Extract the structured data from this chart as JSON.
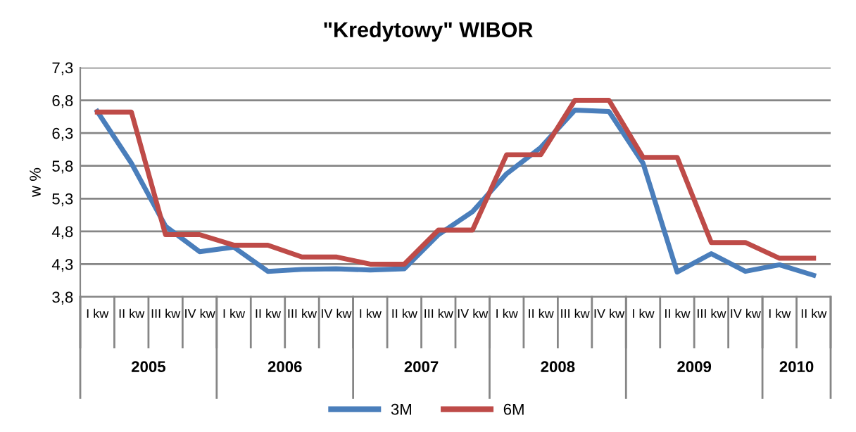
{
  "chart_data": {
    "type": "line",
    "title": "\"Kredytowy\" WIBOR",
    "ylabel": "w %",
    "categories": [
      "I kw",
      "II kw",
      "III kw",
      "IV kw",
      "I kw",
      "II kw",
      "III kw",
      "IV kw",
      "I kw",
      "II kw",
      "III kw",
      "IV kw",
      "I kw",
      "II kw",
      "III kw",
      "IV kw",
      "I kw",
      "II kw",
      "III kw",
      "IV kw",
      "I kw",
      "II kw"
    ],
    "annotations": [
      "2005",
      "2006",
      "2007",
      "2008",
      "2009",
      "2010"
    ],
    "series": [
      {
        "name": "3M",
        "color": "#4a7ebb",
        "values": [
          6.63,
          5.84,
          4.88,
          4.49,
          4.56,
          4.19,
          4.22,
          4.23,
          4.21,
          4.23,
          4.75,
          5.1,
          5.68,
          6.08,
          6.65,
          6.63,
          5.84,
          4.18,
          4.46,
          4.19,
          4.29,
          4.13
        ]
      },
      {
        "name": "6M",
        "color": "#be4b48",
        "values": [
          6.62,
          6.62,
          4.75,
          4.75,
          4.59,
          4.59,
          4.41,
          4.41,
          4.3,
          4.3,
          4.82,
          4.82,
          5.97,
          5.97,
          6.8,
          6.8,
          5.93,
          5.93,
          4.63,
          4.63,
          4.39,
          4.39
        ]
      }
    ],
    "ylim": [
      3.8,
      7.3
    ],
    "yticks": [
      {
        "value": 3.8,
        "label": "3,8"
      },
      {
        "value": 4.3,
        "label": "4,3"
      },
      {
        "value": 4.8,
        "label": "4,8"
      },
      {
        "value": 5.3,
        "label": "5,3"
      },
      {
        "value": 5.8,
        "label": "5,8"
      },
      {
        "value": 6.3,
        "label": "6,3"
      },
      {
        "value": 6.8,
        "label": "6,8"
      },
      {
        "value": 7.3,
        "label": "7,3"
      }
    ],
    "grid": "y",
    "legend": "bottom",
    "marker": "none",
    "line_style": "solid"
  }
}
